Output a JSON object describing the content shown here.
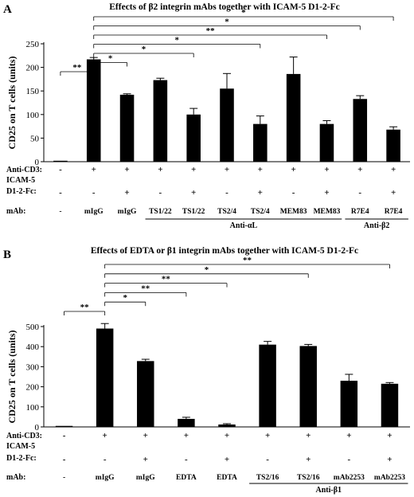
{
  "chart_data": [
    {
      "panel": "A",
      "type": "bar",
      "title": "Effects of β2 integrin mAbs together with ICAM-5 D1-2-Fc",
      "ylabel": "CD25 on T cells (units)",
      "ylim": [
        0,
        250
      ],
      "yticks": [
        0,
        50,
        100,
        150,
        200,
        250
      ],
      "values": [
        2,
        217,
        142,
        173,
        100,
        155,
        80,
        186,
        80,
        133,
        68
      ],
      "errors": [
        0,
        4,
        2,
        4,
        13,
        32,
        17,
        36,
        7,
        7,
        6
      ],
      "row_labels": {
        "cd3": "Anti-CD3:",
        "icam": "ICAM-5",
        "d12": "D1-2-Fc:",
        "mab": "mAb:"
      },
      "cd3": [
        "-",
        "+",
        "+",
        "+",
        "+",
        "+",
        "+",
        "+",
        "+",
        "+",
        "+"
      ],
      "d12": [
        "-",
        "-",
        "+",
        "-",
        "+",
        "-",
        "+",
        "-",
        "+",
        "-",
        "+"
      ],
      "mab": [
        "-",
        "mIgG",
        "mIgG",
        "TS1/22",
        "TS1/22",
        "TS2/4",
        "TS2/4",
        "MEM83",
        "MEM83",
        "R7E4",
        "R7E4"
      ],
      "groups": [
        {
          "label": "Anti-αL",
          "from": 3,
          "to": 8
        },
        {
          "label": "Anti-β2",
          "from": 9,
          "to": 10
        }
      ],
      "significance": [
        {
          "from": 0,
          "to": 1,
          "label": "**"
        },
        {
          "from": 1,
          "to": 2,
          "label": "*"
        },
        {
          "from": 1,
          "to": 4,
          "label": "*"
        },
        {
          "from": 1,
          "to": 6,
          "label": "*"
        },
        {
          "from": 1,
          "to": 8,
          "label": "**"
        },
        {
          "from": 1,
          "to": 9,
          "label": "*"
        },
        {
          "from": 1,
          "to": 10,
          "label": "*"
        }
      ]
    },
    {
      "panel": "B",
      "type": "bar",
      "title": "Effects of EDTA or β1 integrin mAbs together with ICAM-5 D1-2-Fc",
      "ylabel": "CD25 on T cells (units)",
      "ylim": [
        0,
        500
      ],
      "yticks": [
        0,
        100,
        200,
        300,
        400,
        500
      ],
      "values": [
        5,
        490,
        328,
        40,
        12,
        410,
        403,
        230,
        215
      ],
      "errors": [
        0,
        25,
        9,
        8,
        4,
        16,
        8,
        32,
        6
      ],
      "row_labels": {
        "cd3": "Anti-CD3:",
        "icam": "ICAM-5",
        "d12": "D1-2-Fc:",
        "mab": "mAb:"
      },
      "cd3": [
        "-",
        "+",
        "+",
        "+",
        "+",
        "+",
        "+",
        "+",
        "+"
      ],
      "d12": [
        "-",
        "-",
        "+",
        "-",
        "+",
        "-",
        "+",
        "-",
        "+"
      ],
      "mab": [
        "-",
        "mIgG",
        "mIgG",
        "EDTA",
        "EDTA",
        "TS2/16",
        "TS2/16",
        "mAb2253",
        "mAb2253"
      ],
      "groups": [
        {
          "label": "Anti-β1",
          "from": 5,
          "to": 8
        }
      ],
      "significance": [
        {
          "from": 0,
          "to": 1,
          "label": "**"
        },
        {
          "from": 1,
          "to": 2,
          "label": "*"
        },
        {
          "from": 1,
          "to": 3,
          "label": "**"
        },
        {
          "from": 1,
          "to": 4,
          "label": "**"
        },
        {
          "from": 1,
          "to": 6,
          "label": "*"
        },
        {
          "from": 1,
          "to": 8,
          "label": "**"
        }
      ]
    }
  ]
}
